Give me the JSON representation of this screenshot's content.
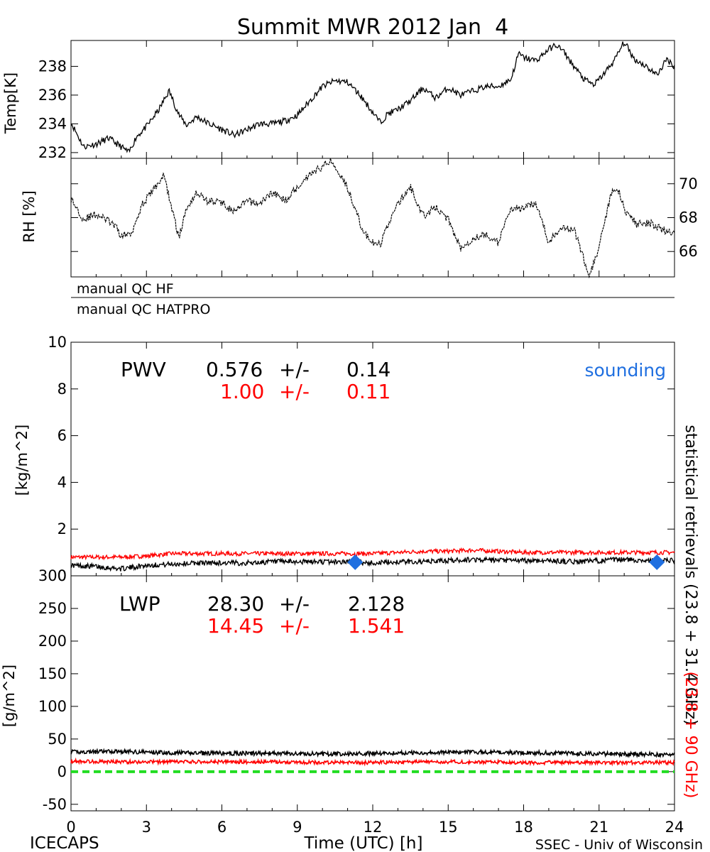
{
  "chart_data": [
    {
      "type": "line",
      "panel": "temperature",
      "title": "Summit MWR 2012 Jan  4",
      "ylabel": "Temp[K]",
      "xlim": [
        0,
        24
      ],
      "ylim": [
        231.6,
        239.8
      ],
      "ytick_labels": [
        "232",
        "234",
        "236",
        "238"
      ],
      "series": [
        {
          "name": "Temperature",
          "x": [
            0,
            0.5,
            1,
            1.5,
            2,
            2.3,
            2.6,
            3,
            3.5,
            3.9,
            4.3,
            4.6,
            5,
            5.5,
            6,
            6.5,
            7,
            7.5,
            8,
            8.5,
            9,
            9.5,
            10,
            10.5,
            11,
            11.5,
            12,
            12.3,
            12.6,
            13,
            13.5,
            14,
            14.5,
            15,
            15.5,
            16,
            16.5,
            17,
            17.5,
            17.8,
            18,
            18.5,
            19,
            19.3,
            19.6,
            20,
            20.4,
            20.8,
            21.2,
            21.6,
            22,
            22.4,
            22.8,
            23.3,
            23.7,
            24
          ],
          "values": [
            234.1,
            232.4,
            232.6,
            233.0,
            232.4,
            232.0,
            233.1,
            233.8,
            235.0,
            236.3,
            234.6,
            233.9,
            234.5,
            234.0,
            233.6,
            233.2,
            233.6,
            234.0,
            234.0,
            234.2,
            234.6,
            235.6,
            236.6,
            237.0,
            236.9,
            236.0,
            234.8,
            234.1,
            234.7,
            235.0,
            235.6,
            236.5,
            235.8,
            236.5,
            236.0,
            236.3,
            236.6,
            236.6,
            237.1,
            238.9,
            238.6,
            238.4,
            239.2,
            239.5,
            239.0,
            238.0,
            237.1,
            236.7,
            237.5,
            238.4,
            239.7,
            238.5,
            238.1,
            237.4,
            238.5,
            238.0
          ]
        }
      ]
    },
    {
      "type": "line",
      "panel": "relative_humidity",
      "ylabel": "RH [%]",
      "xlim": [
        0,
        24
      ],
      "ylim": [
        64.5,
        71.5
      ],
      "ytick_labels": [
        "66",
        "68",
        "70"
      ],
      "series": [
        {
          "name": "RH",
          "x": [
            0,
            0.5,
            1,
            1.5,
            1.8,
            2,
            2.4,
            2.8,
            3.2,
            3.7,
            4,
            4.3,
            4.6,
            5,
            5.4,
            6,
            6.5,
            7,
            7.5,
            8,
            8.5,
            9,
            9.5,
            10,
            10.3,
            10.8,
            11.2,
            11.6,
            12,
            12.3,
            12.6,
            13,
            13.5,
            14,
            14.5,
            15,
            15.5,
            16,
            16.5,
            17,
            17.5,
            18,
            18.5,
            19,
            19.5,
            20,
            20.3,
            20.6,
            20.9,
            21.2,
            21.5,
            21.8,
            22,
            22.5,
            23,
            23.5,
            24
          ],
          "values": [
            69.1,
            67.9,
            68.2,
            67.8,
            67.4,
            66.9,
            67.1,
            68.7,
            69.5,
            70.5,
            68.6,
            66.8,
            68.6,
            69.5,
            69.0,
            68.9,
            68.3,
            69.0,
            68.8,
            69.5,
            69.0,
            69.8,
            70.6,
            71.0,
            71.4,
            70.4,
            69.0,
            67.2,
            66.5,
            66.4,
            67.6,
            68.8,
            69.8,
            68.1,
            68.6,
            67.9,
            66.2,
            66.8,
            67.0,
            66.5,
            68.6,
            68.5,
            68.9,
            66.5,
            67.5,
            67.3,
            66.0,
            64.6,
            65.7,
            67.5,
            69.5,
            69.6,
            68.5,
            67.6,
            67.7,
            67.3,
            67.0
          ]
        }
      ]
    },
    {
      "type": "line",
      "panel": "precipitable_water_vapor",
      "label": "PWV",
      "ylabel": "[kg/m^2]",
      "xlim": [
        0,
        24
      ],
      "ylim": [
        0,
        10
      ],
      "ytick_labels": [
        "0",
        "2",
        "4",
        "6",
        "8",
        "10"
      ],
      "statistical_retrieval": {
        "mean": "0.576",
        "pm": "+/-",
        "err": "0.14"
      },
      "hatpro_retrieval": {
        "mean": "1.00",
        "pm": "+/-",
        "err": "0.11"
      },
      "series": [
        {
          "name": "statistical retrievals (23.8 + 31.4 GHz)",
          "color": "#000000",
          "x": [
            0,
            1,
            2,
            3,
            4,
            5,
            6,
            7,
            8,
            9,
            10,
            11,
            12,
            13,
            14,
            15,
            16,
            17,
            18,
            19,
            20,
            21,
            22,
            23,
            24
          ],
          "values": [
            0.45,
            0.4,
            0.3,
            0.45,
            0.5,
            0.55,
            0.55,
            0.55,
            0.6,
            0.6,
            0.6,
            0.6,
            0.55,
            0.6,
            0.6,
            0.65,
            0.7,
            0.65,
            0.65,
            0.65,
            0.6,
            0.65,
            0.7,
            0.65,
            0.65
          ]
        },
        {
          "name": "(23.8 + 90 GHz)",
          "color": "#ff0000",
          "x": [
            0,
            1,
            2,
            3,
            4,
            5,
            6,
            7,
            8,
            9,
            10,
            11,
            12,
            13,
            14,
            15,
            16,
            17,
            18,
            19,
            20,
            21,
            22,
            23,
            24
          ],
          "values": [
            0.8,
            0.8,
            0.8,
            0.85,
            0.95,
            0.95,
            0.95,
            0.95,
            0.95,
            0.95,
            0.95,
            0.95,
            0.95,
            1.0,
            1.05,
            1.05,
            1.1,
            1.05,
            1.0,
            1.0,
            1.0,
            1.0,
            1.0,
            1.0,
            1.0
          ]
        },
        {
          "name": "sounding",
          "color": "#1f6fe0",
          "marker": "diamond",
          "x": [
            11.3,
            23.3
          ],
          "values": [
            0.58,
            0.58
          ]
        }
      ]
    },
    {
      "type": "line",
      "panel": "liquid_water_path",
      "label": "LWP",
      "ylabel": "[g/m^2]",
      "xlabel": "Time (UTC) [h]",
      "xlim": [
        0,
        24
      ],
      "ylim": [
        -60,
        300
      ],
      "xtick_labels": [
        "0",
        "3",
        "6",
        "9",
        "12",
        "15",
        "18",
        "21",
        "24"
      ],
      "ytick_labels": [
        "-50",
        "0",
        "50",
        "100",
        "150",
        "200",
        "250",
        "300"
      ],
      "statistical_retrieval": {
        "mean": "28.30",
        "pm": "+/-",
        "err": "2.128"
      },
      "hatpro_retrieval": {
        "mean": "14.45",
        "pm": "+/-",
        "err": "1.541"
      },
      "series": [
        {
          "name": "statistical retrievals (23.8 + 31.4 GHz)",
          "color": "#000000",
          "x": [
            0,
            2,
            4,
            6,
            8,
            10,
            12,
            14,
            16,
            18,
            20,
            22,
            24
          ],
          "values": [
            30,
            31,
            29,
            28,
            28,
            27,
            28,
            29,
            30,
            29,
            28,
            27,
            26
          ]
        },
        {
          "name": "(23.8 + 90 GHz)",
          "color": "#ff0000",
          "x": [
            0,
            2,
            4,
            6,
            8,
            10,
            12,
            14,
            16,
            18,
            20,
            22,
            24
          ],
          "values": [
            16,
            15,
            15,
            15,
            15,
            14,
            14,
            15,
            15,
            14,
            14,
            14,
            14
          ]
        },
        {
          "name": "zero line",
          "color": "#22dd22",
          "style": "dashed",
          "x": [
            0,
            24
          ],
          "values": [
            0,
            0
          ]
        }
      ]
    }
  ],
  "qc": {
    "hf": "manual QC HF",
    "hatpro": "manual QC HATPRO"
  },
  "legend": {
    "sounding": "sounding",
    "statistical": "statistical retrievals (23.8 + 31.4 GHz)",
    "hatpro": "(23.8 + 90 GHz)"
  },
  "footer": {
    "left": "ICECAPS",
    "right": "SSEC - Univ of Wisconsin"
  },
  "colors": {
    "red": "#ff0000",
    "blue": "#1f6fe0",
    "green": "#22dd22",
    "black": "#000000"
  }
}
